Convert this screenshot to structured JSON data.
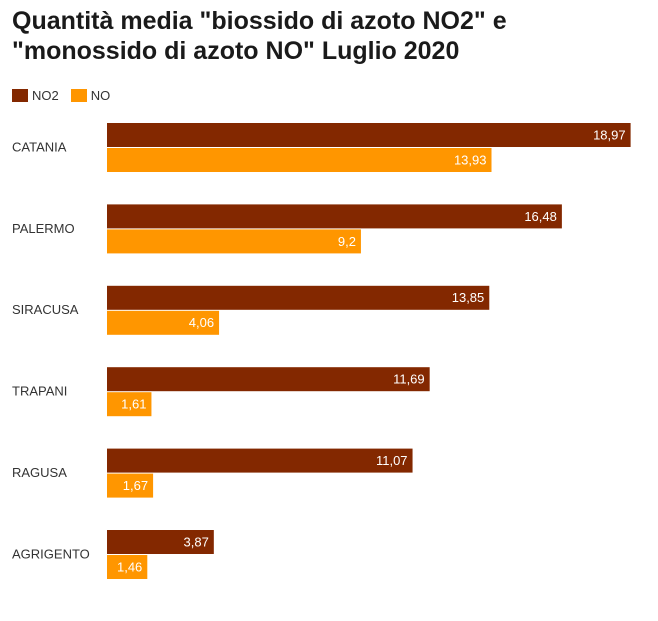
{
  "chart_data": {
    "type": "bar",
    "orientation": "horizontal",
    "title": "Quantità media \"biossido di azoto NO2\" e \"monossido di azoto NO\" Luglio 2020",
    "categories": [
      "CATANIA",
      "PALERMO",
      "SIRACUSA",
      "TRAPANI",
      "RAGUSA",
      "AGRIGENTO"
    ],
    "series": [
      {
        "name": "NO2",
        "color": "#832800",
        "values": [
          18.97,
          16.48,
          13.85,
          11.69,
          11.07,
          3.87
        ],
        "labels": [
          "18,97",
          "16,48",
          "13,85",
          "11,69",
          "11,07",
          "3,87"
        ]
      },
      {
        "name": "NO",
        "color": "#ff9600",
        "values": [
          13.93,
          9.2,
          4.06,
          1.61,
          1.67,
          1.46
        ],
        "labels": [
          "13,93",
          "9,2",
          "4,06",
          "1,61",
          "1,67",
          "1,46"
        ]
      }
    ],
    "xlim": [
      0,
      19.6
    ],
    "grid": false,
    "legend_position": "top-left"
  }
}
